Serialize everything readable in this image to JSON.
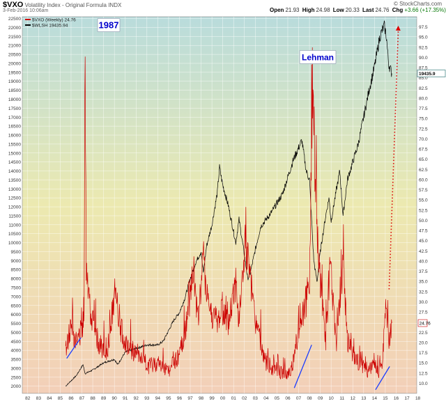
{
  "header": {
    "ticker": "$VXO",
    "description": "Volatility Index - Original Formula INDX",
    "date": "3-Feb-2016 10:06am",
    "open_label": "Open",
    "open_value": "21.93",
    "high_label": "High",
    "high_value": "24.98",
    "low_label": "Low",
    "low_value": "20.33",
    "last_label": "Last",
    "last_value": "24.76",
    "chg_label": "Chg",
    "chg_value": "+3.66 (+17.35%)",
    "logo": "© StockCharts.com"
  },
  "chart_data": {
    "type": "line",
    "legend": [
      {
        "name": "$VXO (Weekly) 24.76",
        "color": "#cc0000"
      },
      {
        "name": "$WLSH 19435.94",
        "color": "#000000"
      }
    ],
    "legend_position": "top-left",
    "grid": true,
    "x_ticks": [
      "82",
      "83",
      "84",
      "85",
      "86",
      "87",
      "88",
      "89",
      "90",
      "91",
      "92",
      "93",
      "94",
      "95",
      "96",
      "97",
      "98",
      "99",
      "00",
      "01",
      "02",
      "03",
      "04",
      "05",
      "06",
      "07",
      "08",
      "09",
      "10",
      "11",
      "12",
      "13",
      "14",
      "15",
      "16",
      "17",
      "18"
    ],
    "xlim": [
      1982,
      2018.4
    ],
    "left_axis": {
      "series": "$WLSH",
      "ylim": [
        1600,
        22600
      ],
      "ticks": [
        2000,
        2500,
        3000,
        3500,
        4000,
        4500,
        5000,
        5500,
        6000,
        6500,
        7000,
        7500,
        8000,
        8500,
        9000,
        9500,
        10000,
        10500,
        11000,
        11500,
        12000,
        12500,
        13000,
        13500,
        14000,
        14500,
        15000,
        15500,
        16000,
        16500,
        17000,
        17500,
        18000,
        18500,
        19000,
        19500,
        20000,
        20500,
        21000,
        21500,
        22000,
        22500
      ]
    },
    "right_axis": {
      "series": "$VXO",
      "ylim": [
        7.5,
        100
      ],
      "ticks": [
        "10.0",
        "12.5",
        "15.0",
        "17.5",
        "20.0",
        "22.5",
        "25.0",
        "27.5",
        "30.0",
        "32.5",
        "35.0",
        "37.5",
        "40.0",
        "42.5",
        "45.0",
        "47.5",
        "50.0",
        "52.5",
        "55.0",
        "57.5",
        "60.0",
        "62.5",
        "65.0",
        "67.5",
        "70.0",
        "72.5",
        "75.0",
        "77.5",
        "80.0",
        "82.5",
        "85.0",
        "87.5",
        "90.0",
        "92.5",
        "95.0",
        "97.5"
      ],
      "last_label": "24.76"
    },
    "series": [
      {
        "name": "$WLSH",
        "color": "#000000",
        "x": [
          1986.0,
          1986.5,
          1987.0,
          1987.6,
          1987.8,
          1988.5,
          1989.5,
          1990.5,
          1990.8,
          1991.5,
          1992.5,
          1993.5,
          1994.5,
          1995.0,
          1995.5,
          1996.0,
          1996.5,
          1997.0,
          1997.5,
          1998.0,
          1998.5,
          1998.7,
          1999.0,
          1999.5,
          2000.0,
          2000.2,
          2000.5,
          2001.0,
          2001.7,
          2002.0,
          2002.5,
          2002.8,
          2003.0,
          2003.5,
          2004.0,
          2005.0,
          2006.0,
          2007.0,
          2007.8,
          2008.2,
          2008.5,
          2008.9,
          2009.2,
          2009.5,
          2010.0,
          2010.3,
          2010.5,
          2011.0,
          2011.3,
          2011.6,
          2012.0,
          2012.5,
          2013.0,
          2013.5,
          2014.0,
          2014.5,
          2015.0,
          2015.4,
          2015.6,
          2015.8,
          2016.1
        ],
        "y": [
          2000,
          2300,
          2600,
          3200,
          2700,
          2900,
          3300,
          3500,
          3200,
          3900,
          4100,
          4300,
          4300,
          4500,
          5100,
          5700,
          6100,
          6900,
          8000,
          8900,
          9500,
          8300,
          9800,
          11000,
          12800,
          14200,
          13200,
          12100,
          10000,
          11300,
          9300,
          8000,
          8200,
          9600,
          10900,
          11700,
          12700,
          14600,
          15700,
          14000,
          13500,
          9000,
          7800,
          9500,
          11500,
          12500,
          11200,
          13000,
          14000,
          11500,
          13500,
          14500,
          15500,
          17000,
          18500,
          19800,
          21500,
          22100,
          21500,
          20000,
          19436
        ]
      },
      {
        "name": "$VXO",
        "color": "#cc0000",
        "x": [
          1986.0,
          1986.5,
          1987.0,
          1987.7,
          1987.8,
          1987.9,
          1988.3,
          1989.0,
          1989.8,
          1990.6,
          1990.9,
          1991.5,
          1992.5,
          1993.5,
          1994.5,
          1995.5,
          1996.5,
          1997.0,
          1997.8,
          1998.2,
          1998.7,
          1999.3,
          2000.0,
          2000.5,
          2001.0,
          2001.7,
          2002.0,
          2002.6,
          2003.0,
          2003.5,
          2004.5,
          2005.5,
          2006.5,
          2007.0,
          2007.6,
          2008.2,
          2008.5,
          2008.8,
          2009.2,
          2009.7,
          2010.0,
          2010.4,
          2010.8,
          2011.0,
          2011.6,
          2012.0,
          2012.5,
          2013.0,
          2014.0,
          2014.5,
          2014.8,
          2015.2,
          2015.6,
          2015.8,
          2016.0,
          2016.1
        ],
        "y": [
          18,
          24,
          20,
          25,
          97,
          40,
          28,
          20,
          17,
          33,
          25,
          20,
          17,
          14,
          15,
          13,
          17,
          22,
          38,
          25,
          40,
          28,
          25,
          28,
          24,
          35,
          25,
          45,
          35,
          25,
          15,
          13,
          12,
          15,
          25,
          30,
          35,
          87,
          45,
          30,
          20,
          40,
          25,
          20,
          40,
          20,
          17,
          15,
          13,
          15,
          12,
          15,
          30,
          20,
          22,
          24.76
        ]
      }
    ],
    "annotations": [
      {
        "text": "1987",
        "x": 1987.8,
        "y": 22000,
        "color": "#0000cc"
      },
      {
        "text": "Lehman",
        "x": 2008.8,
        "y": 19500,
        "color": "#0000cc"
      }
    ],
    "trendlines_blue": [
      {
        "x": [
          1986.1,
          1987.4
        ],
        "y": [
          3550,
          4700
        ]
      },
      {
        "x": [
          2007.1,
          2008.7
        ],
        "y": [
          1900,
          4300
        ]
      },
      {
        "x": [
          2014.6,
          2015.9
        ],
        "y": [
          1800,
          3100
        ]
      }
    ],
    "projection_dotted": {
      "x": [
        2015.85,
        2016.7
      ],
      "y": [
        7400,
        22100
      ],
      "color": "#dd0000"
    },
    "last_value_tag_wlsh": "19435.9",
    "colors": {
      "bg_top": "#b9dcdc",
      "bg_mid": "#ece9b0",
      "bg_bottom": "#f3cfb8",
      "trend": "#1a3cff"
    }
  }
}
